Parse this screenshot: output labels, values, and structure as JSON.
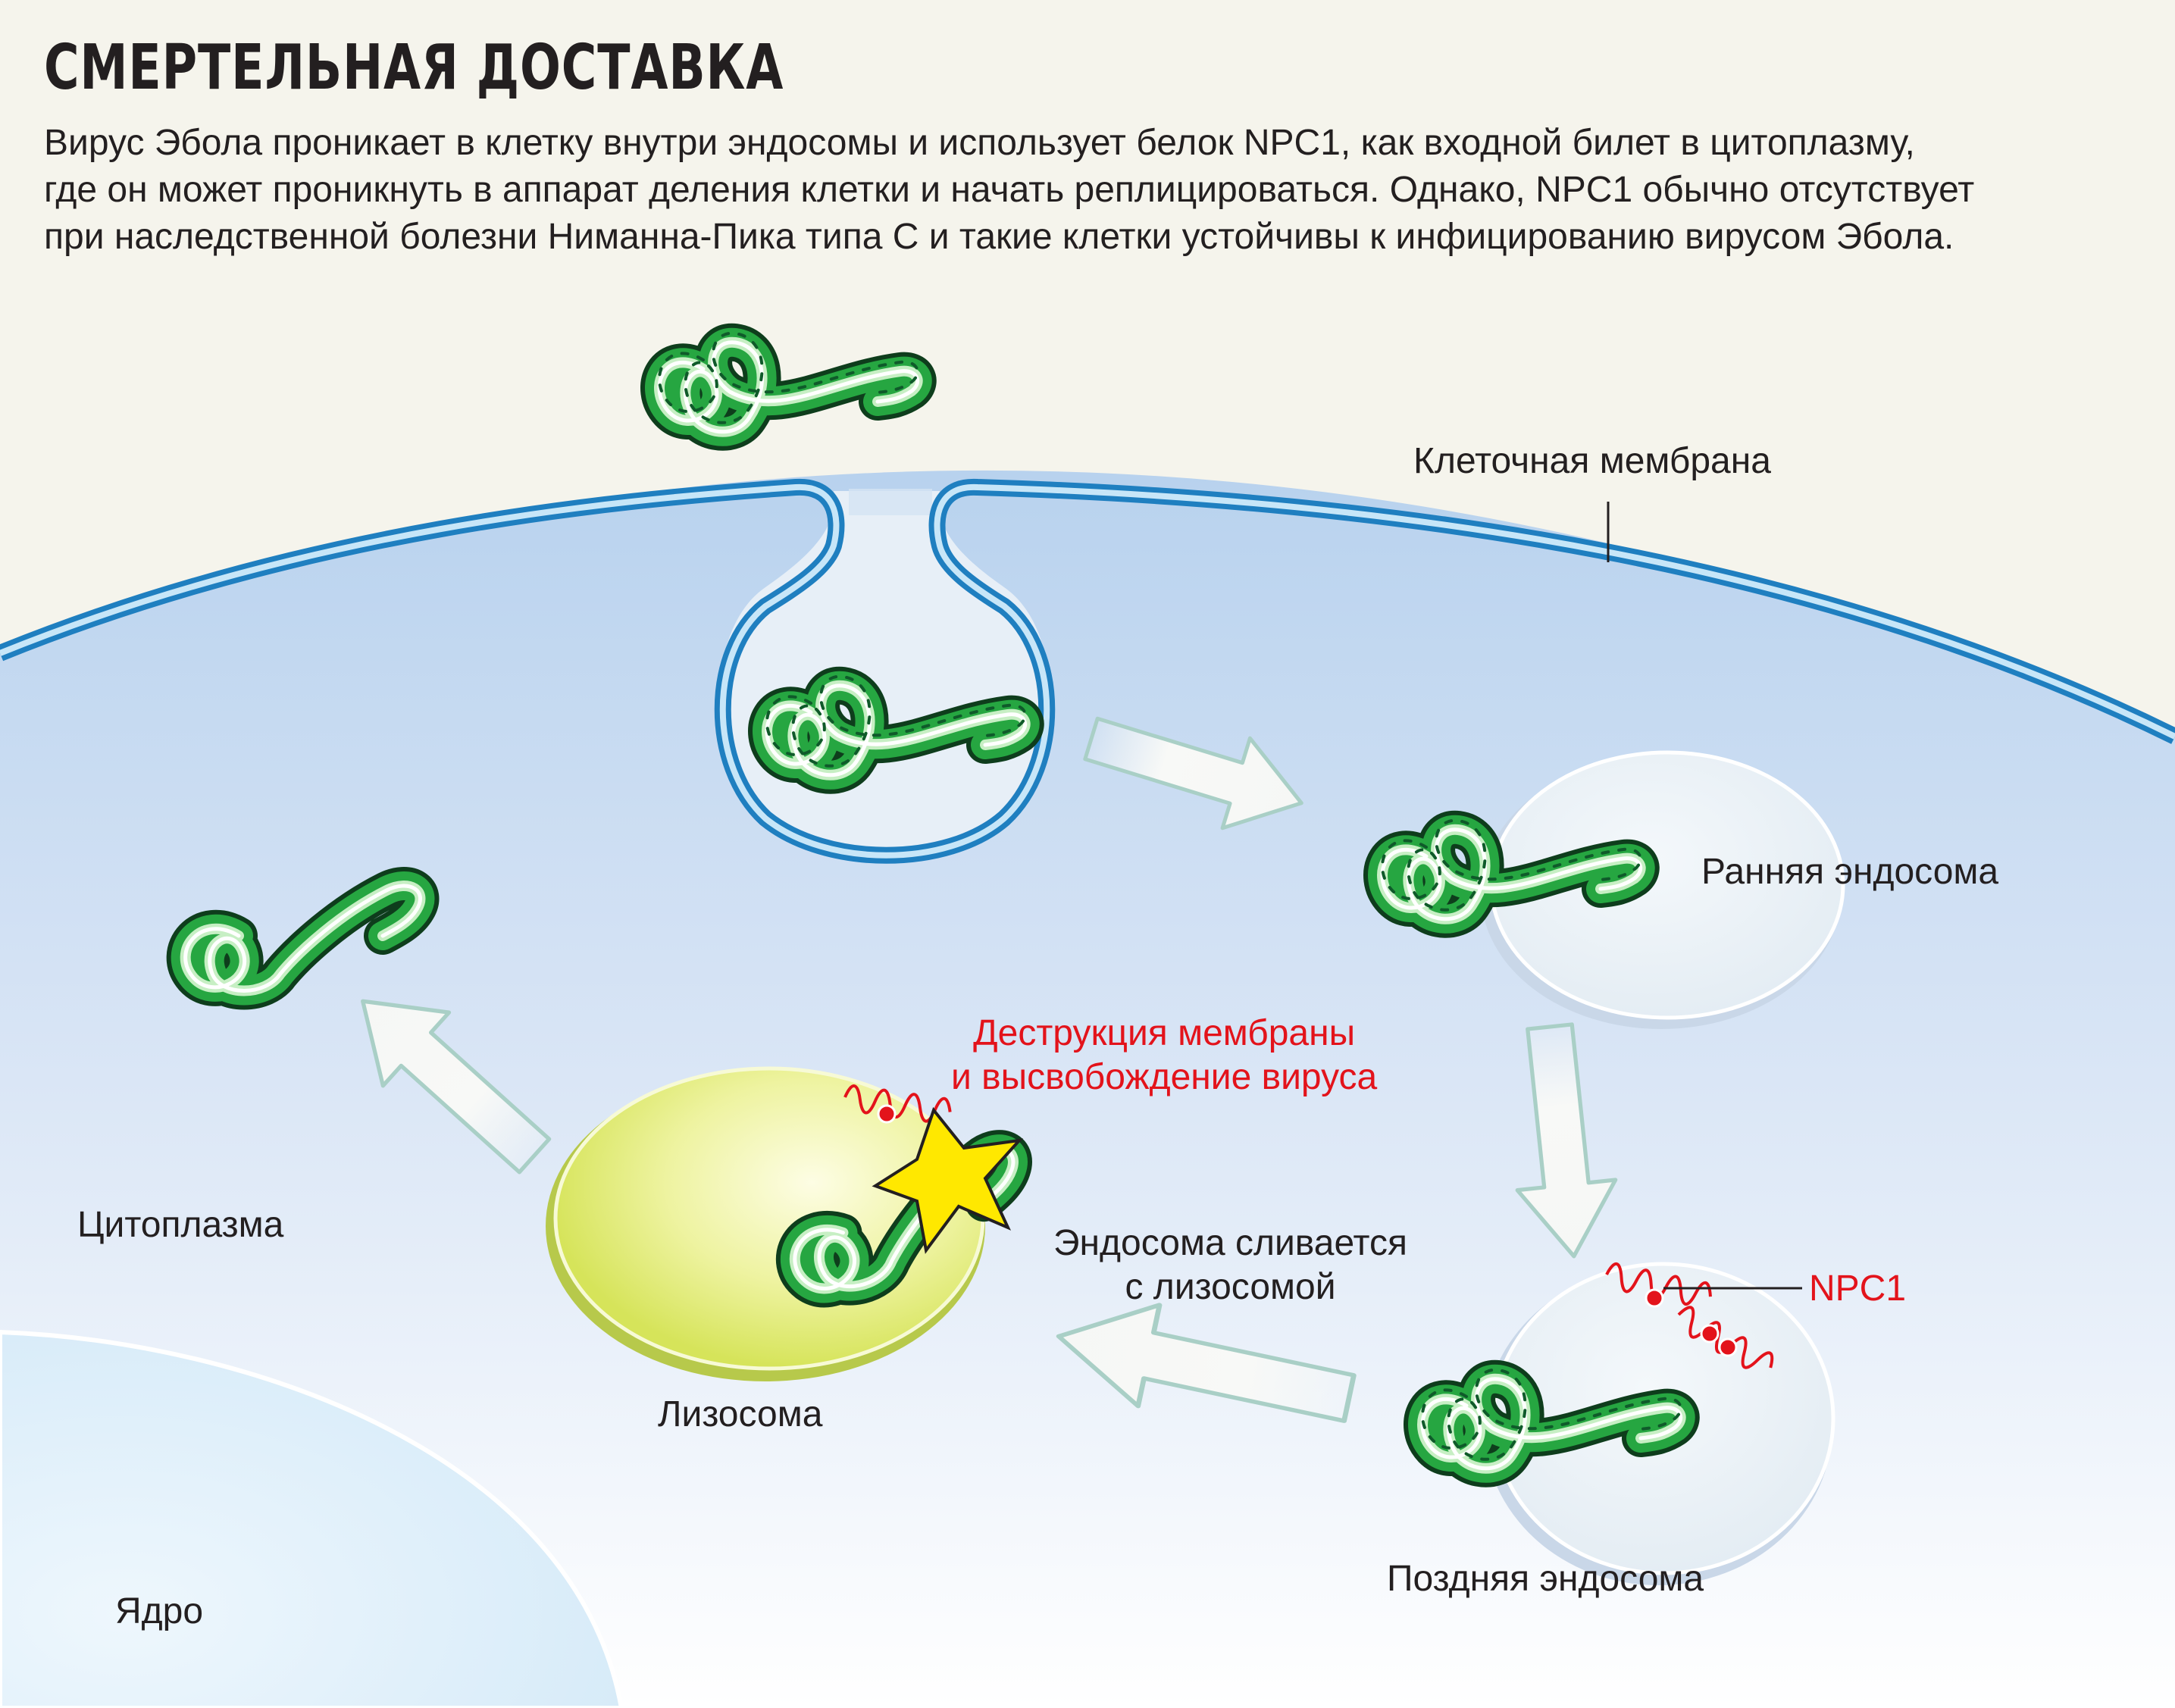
{
  "title": "СМЕРТЕЛЬНАЯ ДОСТАВКА",
  "intro": [
    "Вирус Эбола проникает в клетку внутри эндосомы и использует белок NPC1, как входной билет в цитоплазму,",
    "где он может проникнуть в аппарат деления клетки и начать реплицироваться. Однако, NPC1 обычно отсутствует",
    "при наследственной болезни Ниманна-Пика типа С и такие клетки устойчивы к инфицированию вирусом Эбола."
  ],
  "labels": {
    "membrane": "Клеточная мембрана",
    "early_endosome": "Ранняя эндосома",
    "late_endosome": "Поздняя эндосома",
    "fusion": [
      "Эндосома сливается",
      "с лизосомой"
    ],
    "npc1": "NPC1",
    "destruction": [
      "Деструкция мембраны",
      "и высвобождение вируса"
    ],
    "lysosome": "Лизосома",
    "cytoplasm": "Цитоплазма",
    "nucleus": "Ядро"
  },
  "colors": {
    "virus_dark": "#0f5a2a",
    "virus_green": "#24a23f",
    "membrane_blue": "#1f7fc0",
    "lysosome_yellow": "#e3ea7a",
    "npc1_red": "#e3131b",
    "arrow_fill": "#f6f7f5",
    "arrow_edge": "#a9cfc6",
    "starburst": "#ffe800"
  }
}
